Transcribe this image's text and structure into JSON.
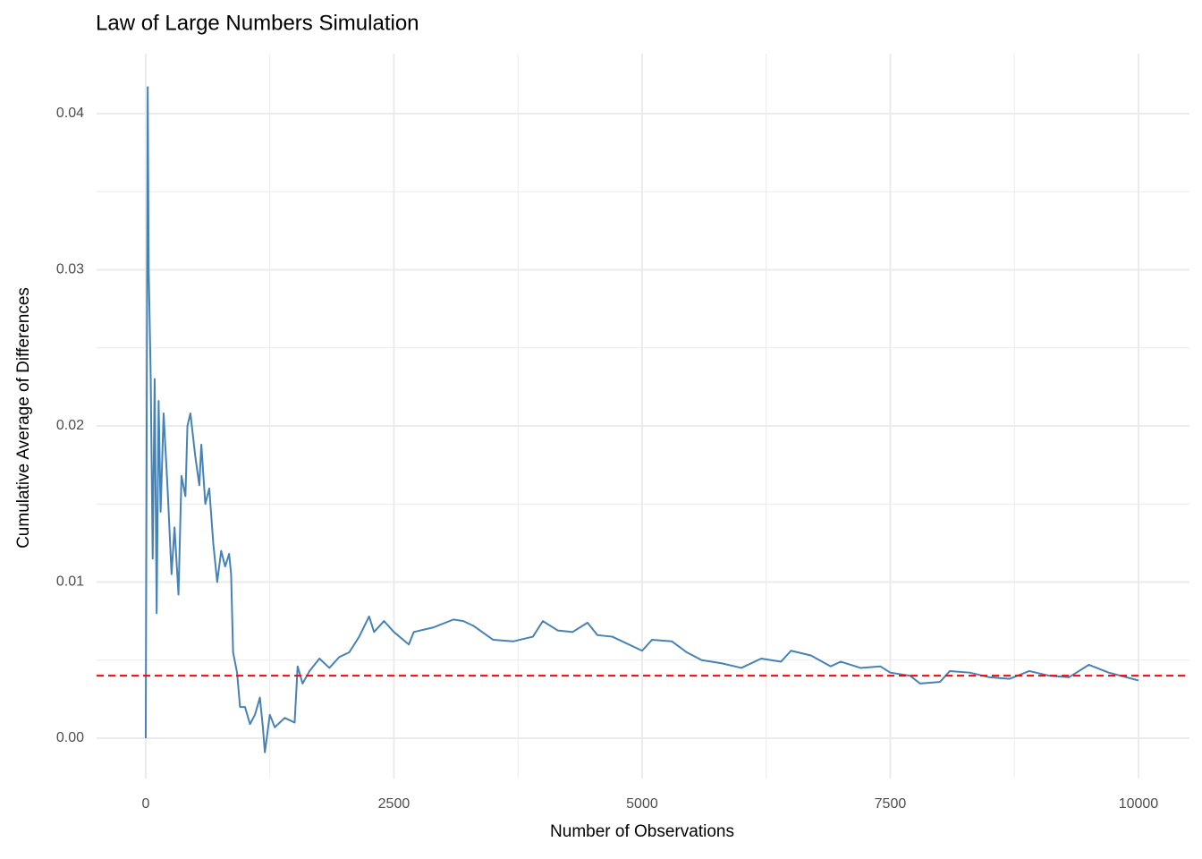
{
  "chart_data": {
    "type": "line",
    "title": "Law of Large Numbers Simulation",
    "x_label": "Number of Observations",
    "y_label": "Cumulative Average of Differences",
    "x": [
      0,
      20,
      30,
      50,
      70,
      90,
      110,
      130,
      150,
      180,
      220,
      260,
      290,
      330,
      360,
      400,
      420,
      450,
      500,
      540,
      560,
      600,
      640,
      680,
      720,
      760,
      800,
      840,
      860,
      880,
      920,
      950,
      1000,
      1050,
      1100,
      1150,
      1180,
      1200,
      1250,
      1300,
      1400,
      1500,
      1530,
      1580,
      1650,
      1750,
      1850,
      1950,
      2050,
      2150,
      2250,
      2300,
      2400,
      2500,
      2650,
      2700,
      2900,
      3100,
      3200,
      3300,
      3500,
      3700,
      3900,
      4000,
      4150,
      4300,
      4450,
      4550,
      4700,
      4900,
      5000,
      5100,
      5300,
      5450,
      5600,
      5800,
      6000,
      6200,
      6400,
      6500,
      6700,
      6900,
      7000,
      7200,
      7400,
      7500,
      7700,
      7800,
      8000,
      8100,
      8300,
      8500,
      8700,
      8900,
      9100,
      9300,
      9500,
      9700,
      10000
    ],
    "values": [
      0,
      0.0417,
      0.03,
      0.0232,
      0.0115,
      0.023,
      0.008,
      0.0216,
      0.0145,
      0.0208,
      0.016,
      0.0105,
      0.0135,
      0.0092,
      0.0168,
      0.0155,
      0.02,
      0.0208,
      0.018,
      0.0162,
      0.0188,
      0.015,
      0.016,
      0.0125,
      0.01,
      0.012,
      0.011,
      0.0118,
      0.0105,
      0.0055,
      0.0042,
      0.002,
      0.002,
      0.0009,
      0.0015,
      0.0026,
      0.0007,
      -0.0009,
      0.0015,
      0.0007,
      0.0013,
      0.001,
      0.0046,
      0.0035,
      0.0043,
      0.0051,
      0.0045,
      0.0052,
      0.0055,
      0.0065,
      0.0078,
      0.0068,
      0.0075,
      0.0068,
      0.006,
      0.0068,
      0.0071,
      0.0076,
      0.0075,
      0.0072,
      0.0063,
      0.0062,
      0.0065,
      0.0075,
      0.0069,
      0.0068,
      0.0074,
      0.0066,
      0.0065,
      0.0059,
      0.0056,
      0.0063,
      0.0062,
      0.0055,
      0.005,
      0.0048,
      0.0045,
      0.0051,
      0.0049,
      0.0056,
      0.0053,
      0.0046,
      0.0049,
      0.0045,
      0.0046,
      0.0042,
      0.004,
      0.0035,
      0.0036,
      0.0043,
      0.0042,
      0.0039,
      0.0038,
      0.0043,
      0.004,
      0.0039,
      0.0047,
      0.0042,
      0.0037
    ],
    "color": "#4682b4",
    "reference_line": {
      "value": 0.004,
      "color": "#ff0000",
      "dashed": true
    },
    "xlim": [
      -495,
      10514
    ],
    "ylim": [
      -0.00258,
      0.04384
    ],
    "xticks": [
      0,
      2500,
      5000,
      7500,
      10000
    ],
    "yticks": [
      {
        "value": 0,
        "label": "0.00"
      },
      0.01,
      0.02,
      0.03,
      0.04
    ],
    "x_minor_ticks": [
      1250,
      3750,
      6250,
      8750
    ],
    "y_minor_ticks": [
      0.005,
      0.015,
      0.025,
      0.035
    ],
    "grid": true
  }
}
